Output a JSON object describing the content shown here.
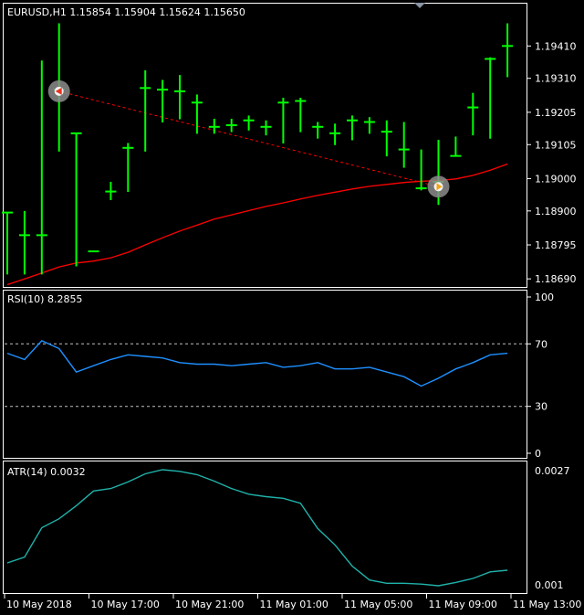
{
  "main_chart": {
    "header": "EURUSD,H1  1.15854 1.15904 1.15624 1.15650",
    "y_ticks": [
      "1.19410",
      "1.19310",
      "1.19205",
      "1.19105",
      "1.19000",
      "1.18900",
      "1.18795",
      "1.18690"
    ],
    "bar_color": "#00ff00",
    "ma_color": "#ff0000",
    "trendline_color": "#ff0000",
    "chart_data": {
      "type": "bar",
      "ylim": [
        1.18665,
        1.1949
      ],
      "bars": [
        {
          "o": 1.18895,
          "h": 1.18895,
          "l": 1.18705,
          "c": 1.18895
        },
        {
          "o": 1.18825,
          "h": 1.189,
          "l": 1.18705,
          "c": 1.18825
        },
        {
          "o": 1.18825,
          "h": 1.19365,
          "l": 1.18705,
          "c": 1.18825
        },
        {
          "o": 1.19275,
          "h": 1.1948,
          "l": 1.19085,
          "c": 1.19275
        },
        {
          "o": 1.1914,
          "h": 1.1914,
          "l": 1.1873,
          "c": 1.1914
        },
        {
          "o": 1.18775,
          "h": 1.18775,
          "l": 1.18775,
          "c": 1.18775
        },
        {
          "o": 1.1896,
          "h": 1.1899,
          "l": 1.18935,
          "c": 1.1896
        },
        {
          "o": 1.19095,
          "h": 1.1911,
          "l": 1.1896,
          "c": 1.19095
        },
        {
          "o": 1.1928,
          "h": 1.19335,
          "l": 1.19085,
          "c": 1.1928
        },
        {
          "o": 1.19275,
          "h": 1.19305,
          "l": 1.19175,
          "c": 1.19275
        },
        {
          "o": 1.1927,
          "h": 1.1932,
          "l": 1.19185,
          "c": 1.1927
        },
        {
          "o": 1.19235,
          "h": 1.1926,
          "l": 1.1914,
          "c": 1.19235
        },
        {
          "o": 1.1916,
          "h": 1.19185,
          "l": 1.1914,
          "c": 1.1916
        },
        {
          "o": 1.19165,
          "h": 1.19185,
          "l": 1.19145,
          "c": 1.19165
        },
        {
          "o": 1.1918,
          "h": 1.19195,
          "l": 1.1915,
          "c": 1.1918
        },
        {
          "o": 1.1916,
          "h": 1.1918,
          "l": 1.19135,
          "c": 1.1916
        },
        {
          "o": 1.19235,
          "h": 1.1925,
          "l": 1.1911,
          "c": 1.19235
        },
        {
          "o": 1.1924,
          "h": 1.1925,
          "l": 1.19145,
          "c": 1.1924
        },
        {
          "o": 1.1916,
          "h": 1.19175,
          "l": 1.19125,
          "c": 1.1916
        },
        {
          "o": 1.1914,
          "h": 1.1917,
          "l": 1.19105,
          "c": 1.1914
        },
        {
          "o": 1.1918,
          "h": 1.19195,
          "l": 1.1912,
          "c": 1.1918
        },
        {
          "o": 1.19175,
          "h": 1.1919,
          "l": 1.1914,
          "c": 1.19175
        },
        {
          "o": 1.19145,
          "h": 1.1918,
          "l": 1.1907,
          "c": 1.19145
        },
        {
          "o": 1.1909,
          "h": 1.19175,
          "l": 1.19035,
          "c": 1.1909
        },
        {
          "o": 1.1897,
          "h": 1.1909,
          "l": 1.18965,
          "c": 1.1897
        },
        {
          "o": 1.1899,
          "h": 1.1912,
          "l": 1.1892,
          "c": 1.1899
        },
        {
          "o": 1.1907,
          "h": 1.1913,
          "l": 1.1907,
          "c": 1.1907
        },
        {
          "o": 1.1922,
          "h": 1.19265,
          "l": 1.19135,
          "c": 1.1922
        },
        {
          "o": 1.1937,
          "h": 1.19375,
          "l": 1.19125,
          "c": 1.1937
        },
        {
          "o": 1.1941,
          "h": 1.1948,
          "l": 1.19315,
          "c": 1.1941
        }
      ],
      "ma": [
        1.18672,
        1.1869,
        1.18708,
        1.18727,
        1.18739,
        1.18745,
        1.18755,
        1.18772,
        1.18795,
        1.18817,
        1.18838,
        1.18856,
        1.18875,
        1.18888,
        1.18901,
        1.18914,
        1.18925,
        1.18937,
        1.18948,
        1.18958,
        1.18968,
        1.18976,
        1.18982,
        1.18988,
        1.18992,
        1.18994,
        1.18999,
        1.1901,
        1.19026,
        1.19045
      ],
      "trendline": {
        "from": [
          3,
          1.1927
        ],
        "to": [
          25,
          1.18975
        ]
      },
      "markers": [
        {
          "bar": 3,
          "y": 1.1927,
          "kind": "left"
        },
        {
          "bar": 25,
          "y": 1.18975,
          "kind": "right"
        }
      ]
    }
  },
  "rsi_panel": {
    "header": "RSI(10) 8.2855",
    "y_ticks": [
      "100",
      "70",
      "30",
      "0"
    ],
    "line_color": "#1e90ff",
    "levels": [
      70,
      30
    ],
    "chart_data": {
      "type": "line",
      "ylim": [
        0,
        100
      ],
      "values": [
        64,
        60,
        72,
        67,
        52,
        56,
        60,
        63,
        62,
        61,
        58,
        57,
        57,
        56,
        57,
        58,
        55,
        56,
        58,
        54,
        54,
        55,
        52,
        49,
        43,
        48,
        54,
        58,
        63,
        64
      ]
    }
  },
  "atr_panel": {
    "header": "ATR(14) 0.0032",
    "y_ticks": [
      "0.0027",
      "0.001"
    ],
    "line_color": "#20b2aa",
    "chart_data": {
      "type": "line",
      "values": [
        0.00132,
        0.00139,
        0.00175,
        0.00186,
        0.00202,
        0.0022,
        0.00223,
        0.00231,
        0.00241,
        0.00246,
        0.00244,
        0.0024,
        0.00232,
        0.00223,
        0.00216,
        0.00213,
        0.00211,
        0.00205,
        0.00174,
        0.00154,
        0.00128,
        0.00111,
        0.00107,
        0.00107,
        0.00106,
        0.00104,
        0.00108,
        0.00113,
        0.00121,
        0.00123
      ]
    }
  },
  "x_axis": {
    "labels": [
      "10 May 2018",
      "10 May 17:00",
      "10 May 21:00",
      "11 May 01:00",
      "11 May 05:00",
      "11 May 09:00",
      "11 May 13:00"
    ]
  }
}
